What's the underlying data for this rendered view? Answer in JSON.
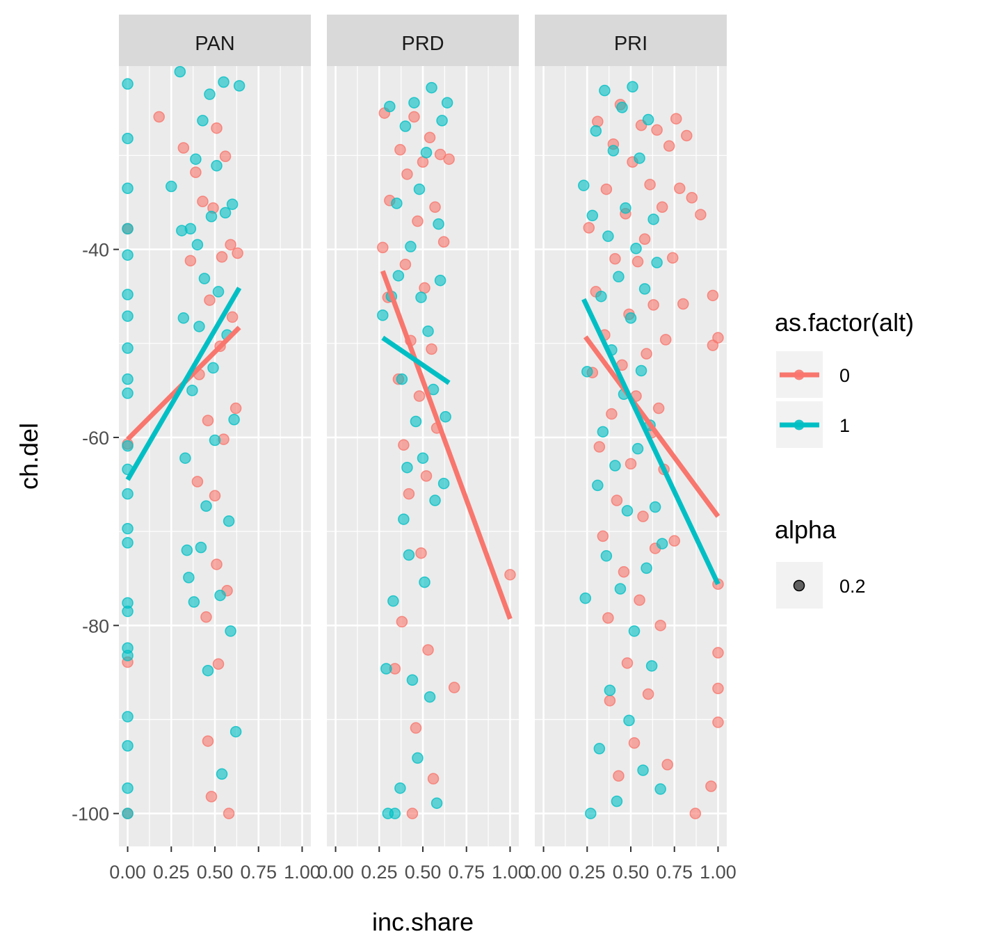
{
  "chart_data": {
    "type": "scatter",
    "xlabel": "inc.share",
    "ylabel": "ch.del",
    "xlim": [
      -0.05,
      1.05
    ],
    "ylim": [
      -103.5,
      -20.5
    ],
    "x_ticks": [
      0,
      0.25,
      0.5,
      0.75,
      1.0
    ],
    "x_tick_labels": [
      "0.00",
      "0.25",
      "0.50",
      "0.75",
      "1.00"
    ],
    "y_ticks": [
      -40,
      -60,
      -80,
      -100
    ],
    "y_tick_labels": [
      "-40",
      "-60",
      "-80",
      "-100"
    ],
    "facets": [
      "PAN",
      "PRD",
      "PRI"
    ],
    "series": [
      {
        "name": "0",
        "color": "#F8766D"
      },
      {
        "name": "1",
        "color": "#00BFC4"
      }
    ],
    "fit_lines": [
      {
        "facet": "PAN",
        "series": "0",
        "x": [
          0.0,
          0.64
        ],
        "y": [
          -60.2,
          -48.3
        ]
      },
      {
        "facet": "PAN",
        "series": "1",
        "x": [
          0.0,
          0.64
        ],
        "y": [
          -64.5,
          -44.1
        ]
      },
      {
        "facet": "PRD",
        "series": "0",
        "x": [
          0.27,
          1.0
        ],
        "y": [
          -42.3,
          -79.3
        ]
      },
      {
        "facet": "PRD",
        "series": "1",
        "x": [
          0.27,
          0.65
        ],
        "y": [
          -49.4,
          -54.2
        ]
      },
      {
        "facet": "PRI",
        "series": "0",
        "x": [
          0.24,
          1.0
        ],
        "y": [
          -49.3,
          -68.4
        ]
      },
      {
        "facet": "PRI",
        "series": "1",
        "x": [
          0.23,
          1.0
        ],
        "y": [
          -45.3,
          -75.6
        ]
      }
    ],
    "points": {
      "PAN": {
        "0": [
          [
            0.0,
            -37.8
          ],
          [
            0.0,
            -60.7
          ],
          [
            0.0,
            -83.9
          ],
          [
            0.0,
            -100
          ],
          [
            0.18,
            -25.9
          ],
          [
            0.32,
            -29.2
          ],
          [
            0.36,
            -41.2
          ],
          [
            0.39,
            -31.8
          ],
          [
            0.4,
            -64.7
          ],
          [
            0.41,
            -53.3
          ],
          [
            0.43,
            -34.9
          ],
          [
            0.45,
            -79.1
          ],
          [
            0.46,
            -58.2
          ],
          [
            0.46,
            -92.3
          ],
          [
            0.47,
            -45.4
          ],
          [
            0.48,
            -98.2
          ],
          [
            0.49,
            -35.6
          ],
          [
            0.5,
            -66.2
          ],
          [
            0.51,
            -27.1
          ],
          [
            0.51,
            -73.5
          ],
          [
            0.52,
            -84.1
          ],
          [
            0.53,
            -50.3
          ],
          [
            0.54,
            -40.8
          ],
          [
            0.55,
            -60.2
          ],
          [
            0.56,
            -30.1
          ],
          [
            0.57,
            -76.3
          ],
          [
            0.58,
            -100
          ],
          [
            0.59,
            -39.5
          ],
          [
            0.6,
            -47.2
          ],
          [
            0.62,
            -56.9
          ],
          [
            0.63,
            -40.4
          ]
        ],
        "1": [
          [
            0.0,
            -22.4
          ],
          [
            0.0,
            -28.2
          ],
          [
            0.0,
            -33.5
          ],
          [
            0.0,
            -37.8
          ],
          [
            0.0,
            -40.6
          ],
          [
            0.0,
            -44.8
          ],
          [
            0.0,
            -47.1
          ],
          [
            0.0,
            -50.5
          ],
          [
            0.0,
            -53.8
          ],
          [
            0.0,
            -55.3
          ],
          [
            0.0,
            -60.9
          ],
          [
            0.0,
            -63.4
          ],
          [
            0.0,
            -66.0
          ],
          [
            0.0,
            -69.7
          ],
          [
            0.0,
            -71.2
          ],
          [
            0.0,
            -77.6
          ],
          [
            0.0,
            -78.5
          ],
          [
            0.0,
            -82.4
          ],
          [
            0.0,
            -83.2
          ],
          [
            0.0,
            -89.7
          ],
          [
            0.0,
            -92.8
          ],
          [
            0.0,
            -97.3
          ],
          [
            0.0,
            -100
          ],
          [
            0.25,
            -33.3
          ],
          [
            0.3,
            -21.1
          ],
          [
            0.31,
            -38.0
          ],
          [
            0.32,
            -47.3
          ],
          [
            0.33,
            -62.2
          ],
          [
            0.34,
            -72.0
          ],
          [
            0.35,
            -74.9
          ],
          [
            0.36,
            -37.8
          ],
          [
            0.37,
            -55.0
          ],
          [
            0.38,
            -77.5
          ],
          [
            0.39,
            -30.4
          ],
          [
            0.4,
            -39.5
          ],
          [
            0.41,
            -48.2
          ],
          [
            0.42,
            -71.7
          ],
          [
            0.43,
            -26.3
          ],
          [
            0.44,
            -43.1
          ],
          [
            0.45,
            -67.3
          ],
          [
            0.46,
            -84.8
          ],
          [
            0.47,
            -23.5
          ],
          [
            0.48,
            -36.5
          ],
          [
            0.49,
            -52.6
          ],
          [
            0.5,
            -60.3
          ],
          [
            0.51,
            -31.1
          ],
          [
            0.52,
            -44.5
          ],
          [
            0.53,
            -76.8
          ],
          [
            0.54,
            -95.8
          ],
          [
            0.55,
            -22.2
          ],
          [
            0.56,
            -36.1
          ],
          [
            0.57,
            -49.1
          ],
          [
            0.58,
            -68.9
          ],
          [
            0.59,
            -80.6
          ],
          [
            0.6,
            -35.2
          ],
          [
            0.61,
            -58.1
          ],
          [
            0.62,
            -91.3
          ],
          [
            0.64,
            -22.6
          ]
        ]
      },
      "PRD": {
        "0": [
          [
            0.27,
            -39.8
          ],
          [
            0.28,
            -25.5
          ],
          [
            0.3,
            -45.1
          ],
          [
            0.31,
            -34.8
          ],
          [
            0.34,
            -84.6
          ],
          [
            0.36,
            -53.8
          ],
          [
            0.37,
            -29.4
          ],
          [
            0.38,
            -79.6
          ],
          [
            0.39,
            -60.8
          ],
          [
            0.4,
            -41.6
          ],
          [
            0.41,
            -32.0
          ],
          [
            0.42,
            -66.0
          ],
          [
            0.43,
            -49.7
          ],
          [
            0.44,
            -100
          ],
          [
            0.45,
            -25.9
          ],
          [
            0.46,
            -90.9
          ],
          [
            0.47,
            -37.0
          ],
          [
            0.48,
            -55.6
          ],
          [
            0.49,
            -72.3
          ],
          [
            0.5,
            -30.7
          ],
          [
            0.51,
            -44.1
          ],
          [
            0.52,
            -64.1
          ],
          [
            0.53,
            -82.6
          ],
          [
            0.54,
            -28.1
          ],
          [
            0.55,
            -50.6
          ],
          [
            0.56,
            -96.3
          ],
          [
            0.57,
            -35.5
          ],
          [
            0.58,
            -59.0
          ],
          [
            0.6,
            -29.9
          ],
          [
            0.62,
            -39.2
          ],
          [
            0.65,
            -30.4
          ],
          [
            0.68,
            -86.6
          ],
          [
            1.0,
            -74.6
          ]
        ],
        "1": [
          [
            0.27,
            -47.0
          ],
          [
            0.29,
            -84.6
          ],
          [
            0.3,
            -100
          ],
          [
            0.31,
            -24.8
          ],
          [
            0.32,
            -45.0
          ],
          [
            0.33,
            -77.4
          ],
          [
            0.34,
            -100
          ],
          [
            0.35,
            -35.1
          ],
          [
            0.36,
            -42.8
          ],
          [
            0.37,
            -97.3
          ],
          [
            0.38,
            -53.8
          ],
          [
            0.39,
            -68.7
          ],
          [
            0.4,
            -26.9
          ],
          [
            0.41,
            -63.2
          ],
          [
            0.42,
            -72.5
          ],
          [
            0.43,
            -39.7
          ],
          [
            0.44,
            -85.8
          ],
          [
            0.45,
            -24.4
          ],
          [
            0.46,
            -58.3
          ],
          [
            0.47,
            -94.1
          ],
          [
            0.48,
            -33.6
          ],
          [
            0.49,
            -45.1
          ],
          [
            0.5,
            -62.2
          ],
          [
            0.51,
            -75.4
          ],
          [
            0.52,
            -29.7
          ],
          [
            0.53,
            -48.7
          ],
          [
            0.54,
            -87.6
          ],
          [
            0.55,
            -22.8
          ],
          [
            0.56,
            -54.9
          ],
          [
            0.57,
            -66.7
          ],
          [
            0.58,
            -98.9
          ],
          [
            0.59,
            -37.3
          ],
          [
            0.6,
            -43.3
          ],
          [
            0.61,
            -26.3
          ],
          [
            0.62,
            -64.9
          ],
          [
            0.63,
            -57.8
          ],
          [
            0.64,
            -24.4
          ]
        ]
      },
      "PRI": {
        "0": [
          [
            0.26,
            -37.7
          ],
          [
            0.28,
            -53.1
          ],
          [
            0.3,
            -44.5
          ],
          [
            0.31,
            -26.4
          ],
          [
            0.32,
            -61.0
          ],
          [
            0.34,
            -70.5
          ],
          [
            0.35,
            -49.1
          ],
          [
            0.36,
            -33.6
          ],
          [
            0.37,
            -79.2
          ],
          [
            0.38,
            -88.0
          ],
          [
            0.39,
            -57.5
          ],
          [
            0.4,
            -28.8
          ],
          [
            0.41,
            -41.0
          ],
          [
            0.42,
            -66.7
          ],
          [
            0.43,
            -96.0
          ],
          [
            0.44,
            -24.6
          ],
          [
            0.45,
            -52.3
          ],
          [
            0.46,
            -74.3
          ],
          [
            0.47,
            -36.2
          ],
          [
            0.48,
            -84.0
          ],
          [
            0.49,
            -46.9
          ],
          [
            0.5,
            -62.8
          ],
          [
            0.51,
            -30.7
          ],
          [
            0.52,
            -92.5
          ],
          [
            0.53,
            -55.6
          ],
          [
            0.54,
            -41.3
          ],
          [
            0.55,
            -77.3
          ],
          [
            0.56,
            -26.8
          ],
          [
            0.57,
            -68.4
          ],
          [
            0.58,
            -38.9
          ],
          [
            0.59,
            -51.1
          ],
          [
            0.6,
            -87.3
          ],
          [
            0.61,
            -33.1
          ],
          [
            0.62,
            -59.5
          ],
          [
            0.63,
            -45.9
          ],
          [
            0.64,
            -71.8
          ],
          [
            0.65,
            -27.3
          ],
          [
            0.66,
            -56.9
          ],
          [
            0.67,
            -80.0
          ],
          [
            0.68,
            -35.5
          ],
          [
            0.69,
            -63.4
          ],
          [
            0.7,
            -49.6
          ],
          [
            0.71,
            -94.8
          ],
          [
            0.72,
            -29.0
          ],
          [
            0.74,
            -40.9
          ],
          [
            0.75,
            -71.0
          ],
          [
            0.76,
            -26.1
          ],
          [
            0.78,
            -33.5
          ],
          [
            0.8,
            -45.8
          ],
          [
            0.82,
            -27.9
          ],
          [
            0.85,
            -34.5
          ],
          [
            0.87,
            -100
          ],
          [
            0.9,
            -36.3
          ],
          [
            0.96,
            -97.1
          ],
          [
            0.97,
            -44.9
          ],
          [
            0.97,
            -50.2
          ],
          [
            1.0,
            -49.4
          ],
          [
            1.0,
            -75.6
          ],
          [
            1.0,
            -82.9
          ],
          [
            1.0,
            -86.7
          ],
          [
            1.0,
            -90.3
          ]
        ],
        "1": [
          [
            0.23,
            -33.2
          ],
          [
            0.24,
            -77.1
          ],
          [
            0.25,
            -53.0
          ],
          [
            0.27,
            -100
          ],
          [
            0.28,
            -36.4
          ],
          [
            0.3,
            -27.4
          ],
          [
            0.31,
            -65.1
          ],
          [
            0.32,
            -93.1
          ],
          [
            0.33,
            -45.0
          ],
          [
            0.34,
            -59.4
          ],
          [
            0.35,
            -23.1
          ],
          [
            0.36,
            -72.6
          ],
          [
            0.37,
            -38.6
          ],
          [
            0.38,
            -86.9
          ],
          [
            0.39,
            -50.7
          ],
          [
            0.4,
            -29.5
          ],
          [
            0.41,
            -63.0
          ],
          [
            0.42,
            -98.7
          ],
          [
            0.43,
            -42.9
          ],
          [
            0.44,
            -76.1
          ],
          [
            0.45,
            -24.9
          ],
          [
            0.46,
            -55.4
          ],
          [
            0.47,
            -35.6
          ],
          [
            0.48,
            -67.8
          ],
          [
            0.49,
            -90.1
          ],
          [
            0.5,
            -47.3
          ],
          [
            0.51,
            -22.7
          ],
          [
            0.52,
            -80.6
          ],
          [
            0.53,
            -39.9
          ],
          [
            0.54,
            -61.2
          ],
          [
            0.55,
            -30.3
          ],
          [
            0.56,
            -52.9
          ],
          [
            0.57,
            -95.4
          ],
          [
            0.58,
            -44.2
          ],
          [
            0.59,
            -73.9
          ],
          [
            0.6,
            -26.2
          ],
          [
            0.61,
            -58.7
          ],
          [
            0.62,
            -84.3
          ],
          [
            0.63,
            -36.8
          ],
          [
            0.64,
            -67.4
          ],
          [
            0.65,
            -41.4
          ],
          [
            0.67,
            -97.4
          ],
          [
            0.68,
            -71.3
          ]
        ]
      }
    }
  },
  "legend": {
    "color_title": "as.factor(alt)",
    "color_items": [
      {
        "label": "0",
        "color": "#F8766D"
      },
      {
        "label": "1",
        "color": "#00BFC4"
      }
    ],
    "alpha_title": "alpha",
    "alpha_items": [
      {
        "label": "0.2"
      }
    ]
  }
}
